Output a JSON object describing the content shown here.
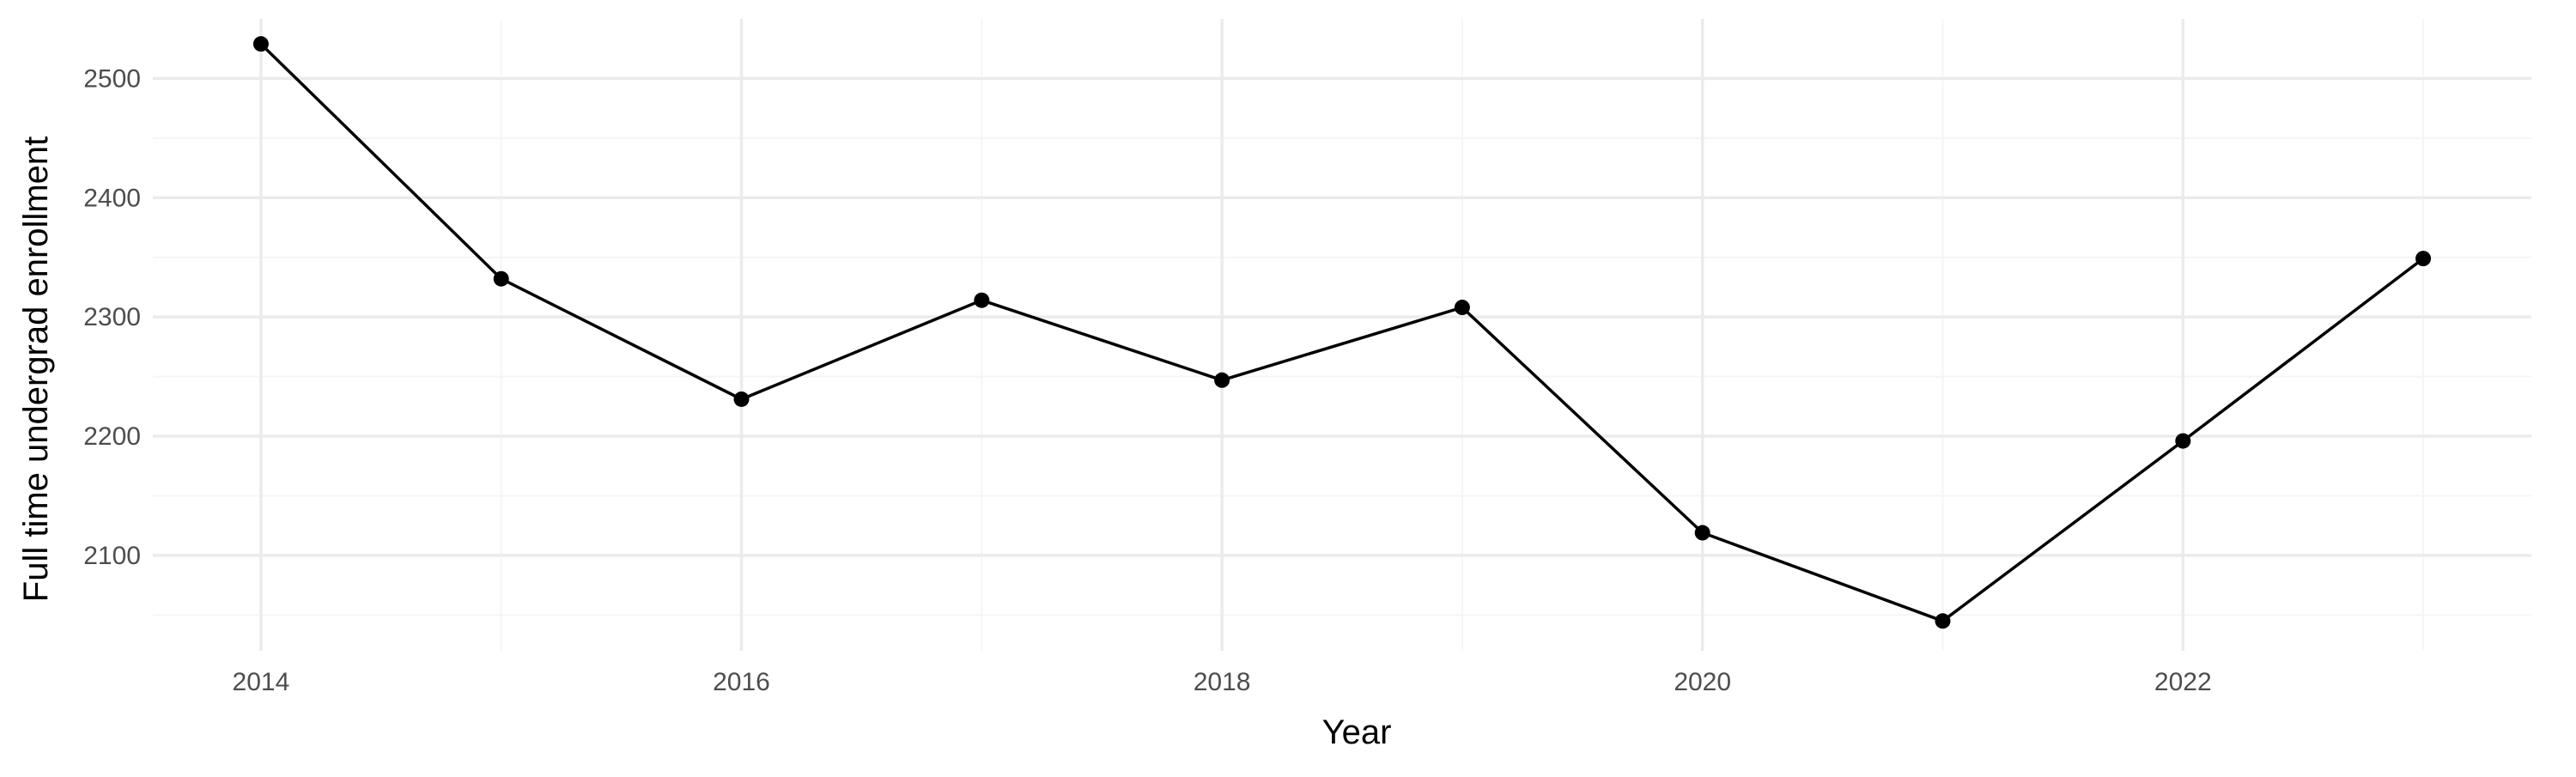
{
  "chart_data": {
    "type": "line",
    "xlabel": "Year",
    "ylabel": "Full time undergrad enrollment",
    "x": [
      2014,
      2015,
      2016,
      2017,
      2018,
      2019,
      2020,
      2021,
      2022,
      2023
    ],
    "series": [
      {
        "values": [
          2529,
          2332,
          2231,
          2314,
          2247,
          2308,
          2119,
          2045,
          2196,
          2349
        ]
      }
    ],
    "x_ticks": [
      2014,
      2016,
      2018,
      2020,
      2022
    ],
    "y_ticks": [
      2100,
      2200,
      2300,
      2400,
      2500
    ],
    "xlim": [
      2013.55,
      2023.45
    ],
    "ylim": [
      2020,
      2550
    ],
    "grid": true,
    "legend": "none",
    "colors": {
      "line": "#000000",
      "grid_major": "#ebebeb",
      "grid_minor": "#f5f5f5",
      "background": "#ffffff"
    }
  }
}
